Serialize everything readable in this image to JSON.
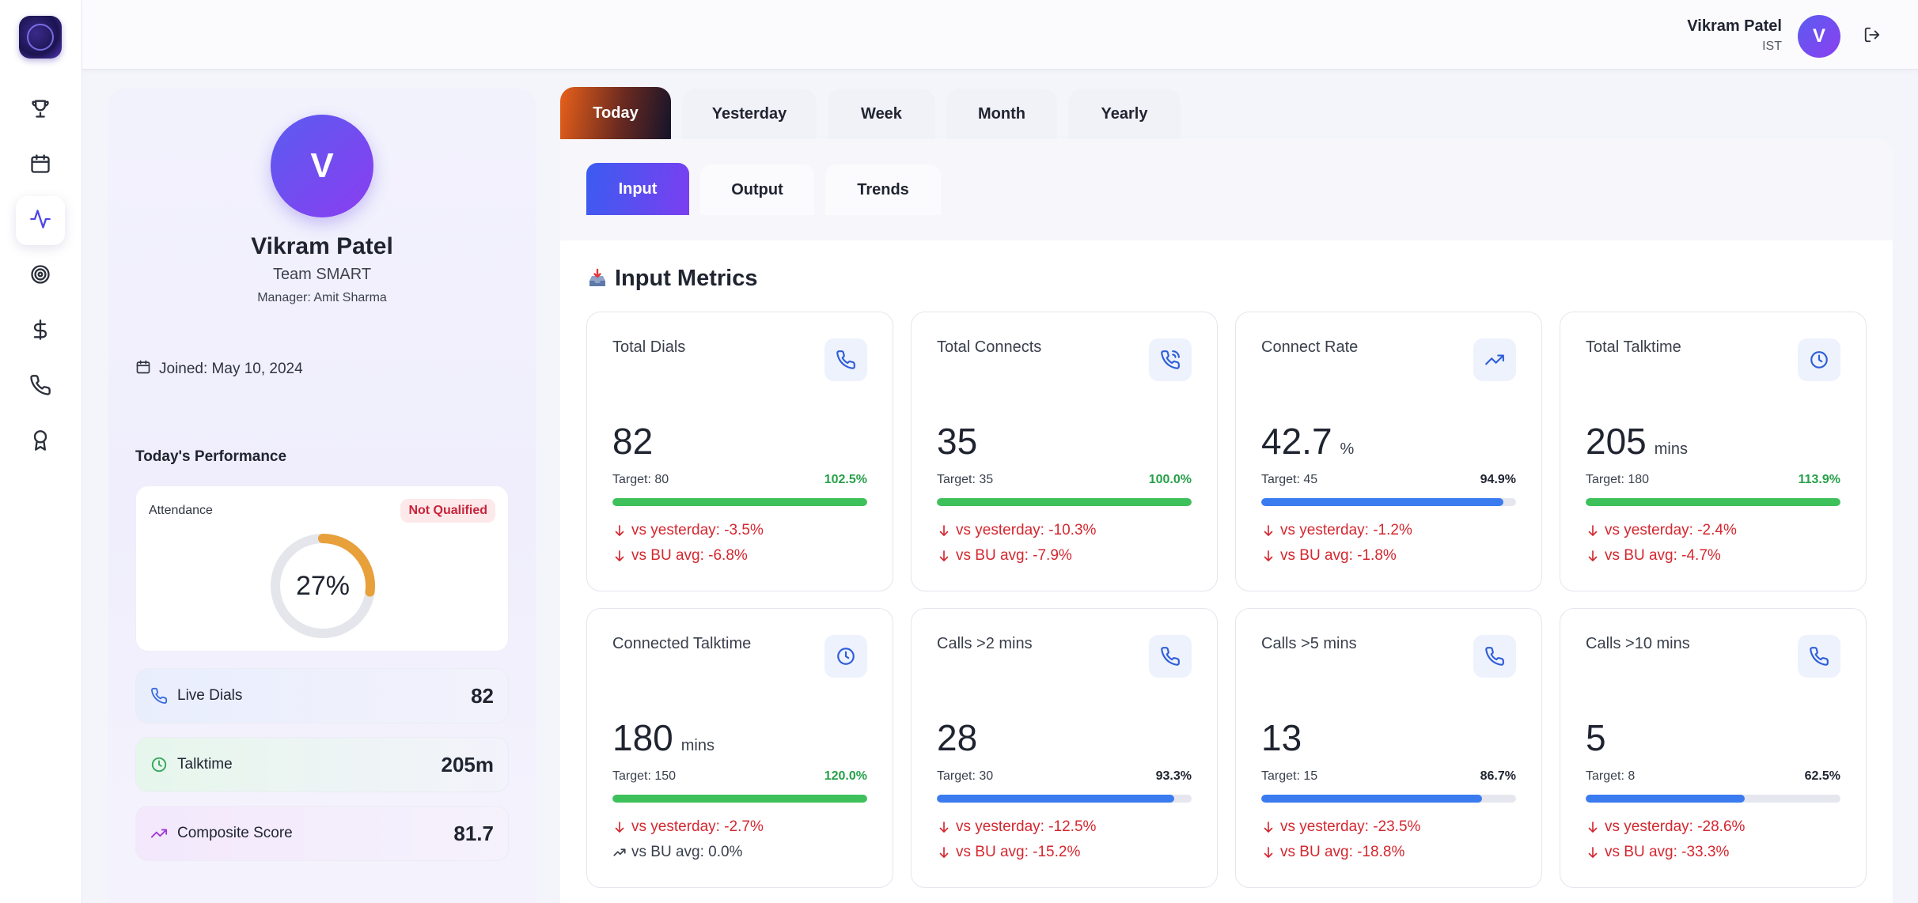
{
  "header": {
    "user_name": "Vikram Patel",
    "timezone": "IST",
    "avatar_initial": "V"
  },
  "sidebar": {
    "items": [
      {
        "icon": "trophy-icon",
        "active": false
      },
      {
        "icon": "calendar-icon",
        "active": false
      },
      {
        "icon": "activity-icon",
        "active": true
      },
      {
        "icon": "target-icon",
        "active": false
      },
      {
        "icon": "dollar-icon",
        "active": false
      },
      {
        "icon": "phone-icon",
        "active": false
      },
      {
        "icon": "award-icon",
        "active": false
      }
    ]
  },
  "profile": {
    "initial": "V",
    "name": "Vikram Patel",
    "team": "Team SMART",
    "manager": "Manager: Amit Sharma",
    "joined": "Joined: May 10, 2024",
    "perf_title": "Today's Performance",
    "attendance_label": "Attendance",
    "attendance_badge": "Not Qualified",
    "attendance_pct_label": "27%",
    "attendance_fraction": 0.27,
    "stats": [
      {
        "label": "Live Dials",
        "value": "82"
      },
      {
        "label": "Talktime",
        "value": "205m"
      },
      {
        "label": "Composite Score",
        "value": "81.7"
      }
    ]
  },
  "period_tabs": [
    "Today",
    "Yesterday",
    "Week",
    "Month",
    "Yearly"
  ],
  "active_period": "Today",
  "sub_tabs": [
    "Input",
    "Output",
    "Trends"
  ],
  "active_sub_tab": "Input",
  "section_title": "Input Metrics",
  "metrics": [
    {
      "title": "Total Dials",
      "icon": "phone-icon",
      "value": "82",
      "unit": "",
      "target": "Target: 80",
      "pct": "102.5%",
      "progress": 1.0,
      "status": "green",
      "cmp1": "vs yesterday: -3.5%",
      "cmp1_trend": "down",
      "cmp2": "vs BU avg: -6.8%",
      "cmp2_trend": "down"
    },
    {
      "title": "Total Connects",
      "icon": "phone-call-icon",
      "value": "35",
      "unit": "",
      "target": "Target: 35",
      "pct": "100.0%",
      "progress": 1.0,
      "status": "green",
      "cmp1": "vs yesterday: -10.3%",
      "cmp1_trend": "down",
      "cmp2": "vs BU avg: -7.9%",
      "cmp2_trend": "down"
    },
    {
      "title": "Connect Rate",
      "icon": "trending-up-icon",
      "value": "42.7",
      "unit": "%",
      "target": "Target: 45",
      "pct": "94.9%",
      "progress": 0.949,
      "status": "blue",
      "cmp1": "vs yesterday: -1.2%",
      "cmp1_trend": "down",
      "cmp2": "vs BU avg: -1.8%",
      "cmp2_trend": "down"
    },
    {
      "title": "Total Talktime",
      "icon": "clock-icon",
      "value": "205",
      "unit": "mins",
      "target": "Target: 180",
      "pct": "113.9%",
      "progress": 1.0,
      "status": "green",
      "cmp1": "vs yesterday: -2.4%",
      "cmp1_trend": "down",
      "cmp2": "vs BU avg: -4.7%",
      "cmp2_trend": "down"
    },
    {
      "title": "Connected Talktime",
      "icon": "clock-icon",
      "value": "180",
      "unit": "mins",
      "target": "Target: 150",
      "pct": "120.0%",
      "progress": 1.0,
      "status": "green",
      "cmp1": "vs yesterday: -2.7%",
      "cmp1_trend": "down",
      "cmp2": "vs BU avg: 0.0%",
      "cmp2_trend": "neutral"
    },
    {
      "title": "Calls >2 mins",
      "icon": "phone-icon",
      "value": "28",
      "unit": "",
      "target": "Target: 30",
      "pct": "93.3%",
      "progress": 0.933,
      "status": "blue",
      "cmp1": "vs yesterday: -12.5%",
      "cmp1_trend": "down",
      "cmp2": "vs BU avg: -15.2%",
      "cmp2_trend": "down"
    },
    {
      "title": "Calls >5 mins",
      "icon": "phone-icon",
      "value": "13",
      "unit": "",
      "target": "Target: 15",
      "pct": "86.7%",
      "progress": 0.867,
      "status": "blue",
      "cmp1": "vs yesterday: -23.5%",
      "cmp1_trend": "down",
      "cmp2": "vs BU avg: -18.8%",
      "cmp2_trend": "down"
    },
    {
      "title": "Calls >10 mins",
      "icon": "phone-icon",
      "value": "5",
      "unit": "",
      "target": "Target: 8",
      "pct": "62.5%",
      "progress": 0.625,
      "status": "blue",
      "cmp1": "vs yesterday: -28.6%",
      "cmp1_trend": "down",
      "cmp2": "vs BU avg: -33.3%",
      "cmp2_trend": "down"
    }
  ],
  "colors": {
    "accent": "#4f46e5",
    "progress_green": "#3ec05a",
    "progress_blue": "#3b7bf0",
    "negative": "#d4272f",
    "ring": "#e8a03a"
  }
}
